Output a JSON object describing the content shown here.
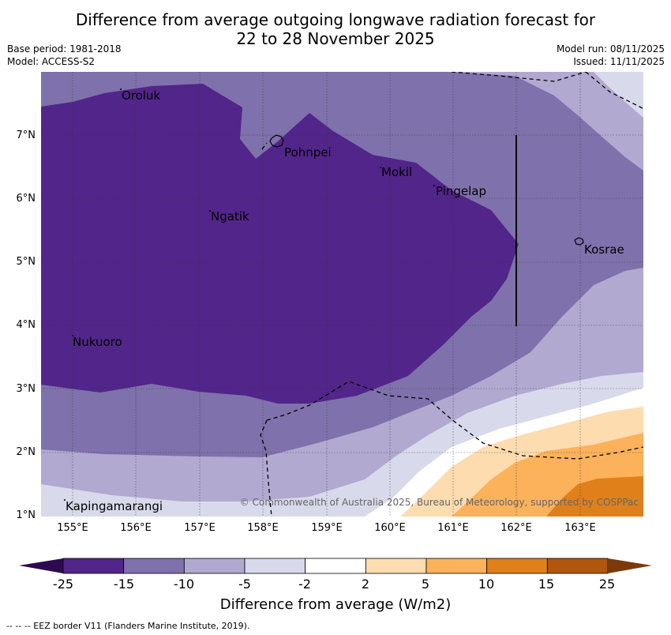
{
  "title_line1": "Difference from average outgoing longwave radiation forecast for",
  "title_line2": "22 to 28 November 2025",
  "base_period": "Base period: 1981-2018",
  "model": "Model: ACCESS-S2",
  "model_run": "Model run: 08/11/2025",
  "issued": "Issued: 11/11/2025",
  "map": {
    "lat_labels": [
      "7°N",
      "6°N",
      "5°N",
      "4°N",
      "3°N",
      "2°N",
      "1°N"
    ],
    "lon_labels": [
      "155°E",
      "156°E",
      "157°E",
      "158°E",
      "159°E",
      "160°E",
      "161°E",
      "162°E",
      "163°E"
    ],
    "places": {
      "oroluk": "Oroluk",
      "pohnpei": "Pohnpei",
      "mokil": "Mokil",
      "pingelap": "Pingelap",
      "ngatik": "Ngatik",
      "kosrae": "Kosrae",
      "nukuoro": "Nukuoro",
      "kapingamarangi": "Kapingamarangi"
    },
    "copyright": "© Commonwealth of Australia 2025, Bureau of Meteorology, supported by COSPPac",
    "colors": {
      "c_deep": "#52258a",
      "c_mid": "#7f71ab",
      "c_light": "#b1a9d0",
      "c_pale": "#d9d9ec",
      "c_white": "#ffffff",
      "c_peach": "#fddcb0",
      "c_orange_light": "#fbb25a",
      "c_orange": "#e0801a",
      "c_brown": "#b1560e"
    }
  },
  "colorbar": {
    "labels": [
      "-25",
      "-15",
      "-10",
      "-5",
      "-2",
      "2",
      "5",
      "10",
      "15",
      "25"
    ],
    "colors": [
      "#52258a",
      "#7f71ab",
      "#b1a9d0",
      "#d9d9ec",
      "#ffffff",
      "#fddcb0",
      "#fbb25a",
      "#e0801a",
      "#b1560e"
    ],
    "low_extend": "#2d0a50",
    "high_extend": "#7a3a0c",
    "title": "Difference from average (W/m2)"
  },
  "legend_eez": "--  --  -- EEZ border V11 (Flanders Marine Institute, 2019)."
}
